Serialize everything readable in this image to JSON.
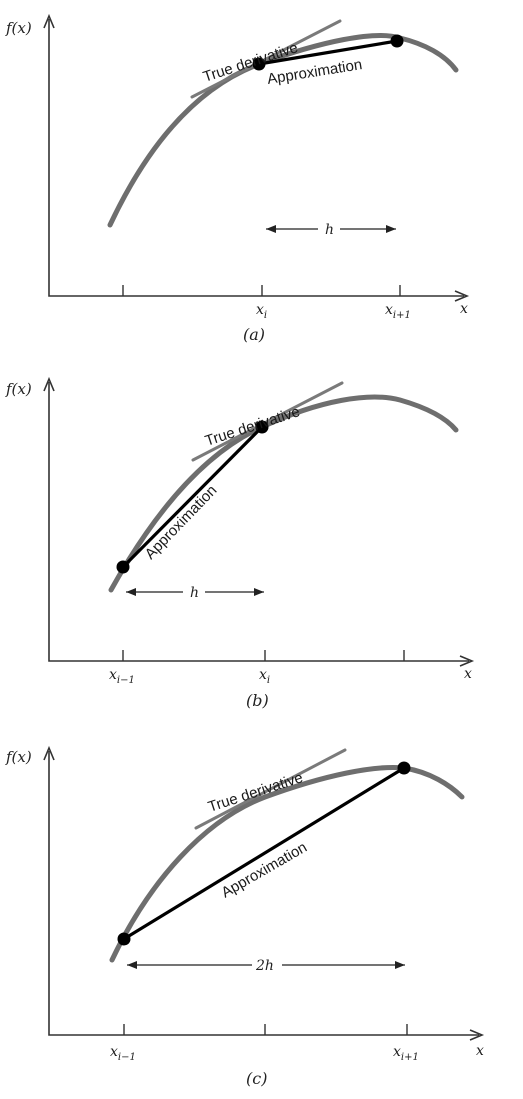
{
  "panels": [
    {
      "id": "a",
      "ylabel": "f(x)",
      "xlabel": "x",
      "tangent_label": "True derivative",
      "approx_label": "Approximation",
      "step_label": "h",
      "ticks": [
        {
          "base": "",
          "sub": ""
        },
        {
          "base": "x",
          "sub": "i"
        },
        {
          "base": "x",
          "sub": "i+1"
        }
      ],
      "caption": "(a)"
    },
    {
      "id": "b",
      "ylabel": "f(x)",
      "xlabel": "x",
      "tangent_label": "True derivative",
      "approx_label": "Approximation",
      "step_label": "h",
      "ticks": [
        {
          "base": "x",
          "sub": "i−1"
        },
        {
          "base": "x",
          "sub": "i"
        },
        {
          "base": "",
          "sub": ""
        }
      ],
      "caption": "(b)"
    },
    {
      "id": "c",
      "ylabel": "f(x)",
      "xlabel": "x",
      "tangent_label": "True derivative",
      "approx_label": "Approximation",
      "step_label": "2h",
      "ticks": [
        {
          "base": "x",
          "sub": "i−1"
        },
        {
          "base": "",
          "sub": ""
        },
        {
          "base": "x",
          "sub": "i+1"
        }
      ],
      "caption": "(c)"
    }
  ]
}
